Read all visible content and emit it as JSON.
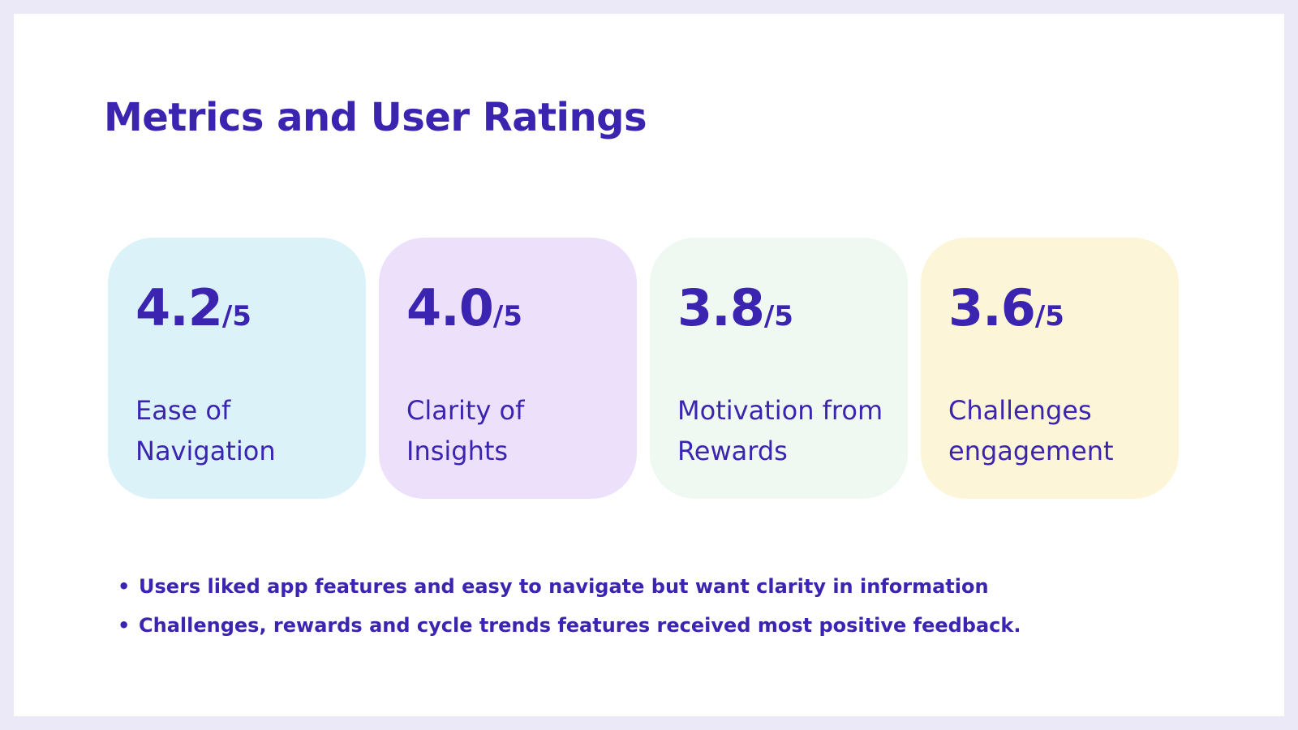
{
  "title": "Metrics and User Ratings",
  "cards": [
    {
      "score": "4.2",
      "max": "/5",
      "label": "Ease of Navigation",
      "color": "#dcf2f9"
    },
    {
      "score": "4.0",
      "max": "/5",
      "label": "Clarity of Insights",
      "color": "#ece0fb"
    },
    {
      "score": "3.8",
      "max": "/5",
      "label": "Motivation from Rewards",
      "color": "#eff8f1"
    },
    {
      "score": "3.6",
      "max": "/5",
      "label": "Challenges engagement",
      "color": "#fdf5d8"
    }
  ],
  "bullets": [
    "Users liked app features and easy to navigate but want clarity in information",
    "Challenges, rewards and cycle trends features received most positive feedback."
  ],
  "colors": {
    "accent": "#3b24b0",
    "frame": "#ebe9f7",
    "background": "#ffffff"
  }
}
